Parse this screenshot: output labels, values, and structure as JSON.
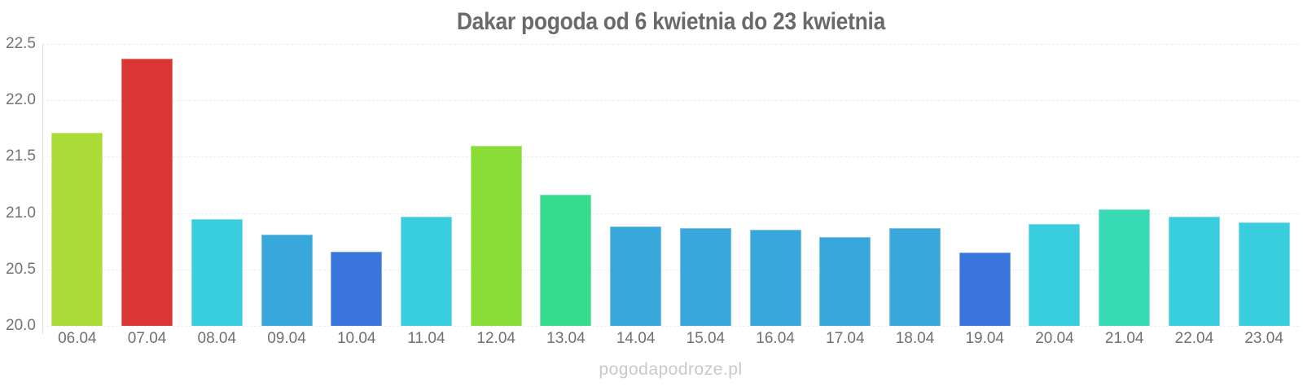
{
  "page": {
    "watermark": "pogodapodroze.pl"
  },
  "chart_data": {
    "type": "bar",
    "title": "Dakar pogoda od 6 kwietnia do 23 kwietnia",
    "xlabel": "",
    "ylabel": "",
    "categories": [
      "06.04",
      "07.04",
      "08.04",
      "09.04",
      "10.04",
      "11.04",
      "12.04",
      "13.04",
      "14.04",
      "15.04",
      "16.04",
      "17.04",
      "18.04",
      "19.04",
      "20.04",
      "21.04",
      "22.04",
      "23.04"
    ],
    "values": [
      21.71,
      22.37,
      20.95,
      20.81,
      20.66,
      20.97,
      21.6,
      21.16,
      20.88,
      20.87,
      20.85,
      20.79,
      20.87,
      20.65,
      20.9,
      21.03,
      20.97,
      20.92
    ],
    "bar_colors": [
      "#aadc37",
      "#db3534",
      "#38cedd",
      "#38a7db",
      "#3a75dc",
      "#38cedd",
      "#8adc36",
      "#36db8b",
      "#38a7db",
      "#38a7db",
      "#38a7db",
      "#38a7db",
      "#38a7db",
      "#3a75dc",
      "#38cedd",
      "#38dab4",
      "#38cedd",
      "#38cedd"
    ],
    "palette": {
      "hot_red": "#db3534",
      "warm_yellow_green": "#aadc37",
      "green": "#8adc36",
      "emerald": "#36db8b",
      "mint": "#38dab4",
      "cyan": "#38cedd",
      "blue": "#38a7db",
      "royal_blue": "#3a75dc"
    },
    "ylim": [
      20.0,
      22.5
    ],
    "yticks": [
      20.0,
      20.5,
      21.0,
      21.5,
      22.0,
      22.5
    ],
    "ytick_labels": [
      "20.0",
      "20.5",
      "21.0",
      "21.5",
      "22.0",
      "22.5"
    ],
    "grid": true,
    "legend": "none",
    "text_colors": {
      "title": "#6a6a6a",
      "ticks": "#737373",
      "watermark": "#c9c9c9"
    }
  }
}
